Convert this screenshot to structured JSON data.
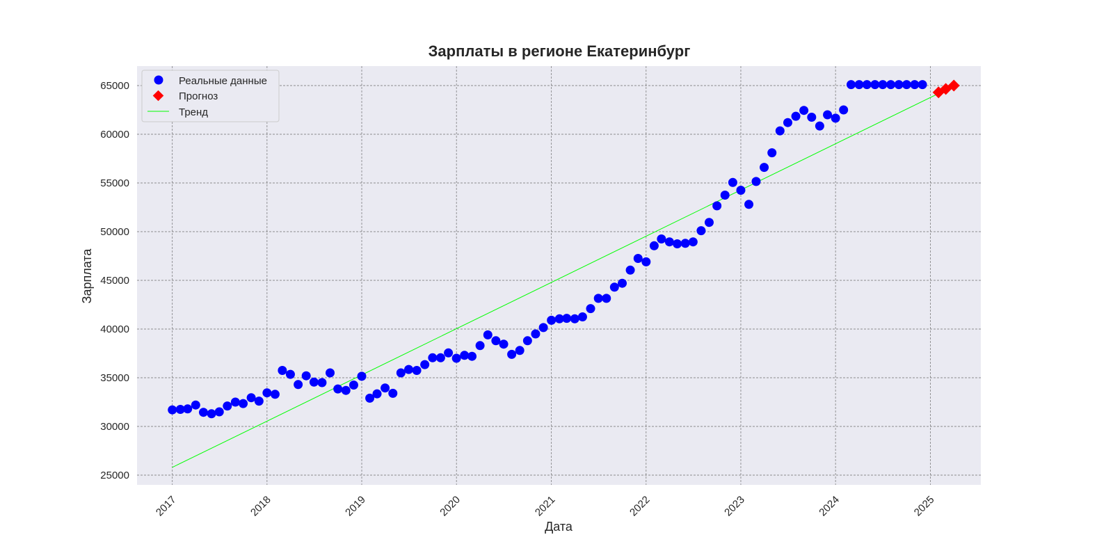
{
  "chart_data": {
    "type": "scatter",
    "title": "Зарплаты в регионе Екатеринбург",
    "xlabel": "Дата",
    "ylabel": "Зарплата",
    "x_axis_type": "date",
    "xlim": [
      "2016-08-18",
      "2025-07-14"
    ],
    "ylim": [
      24000,
      67000
    ],
    "x_ticks": [
      "2017",
      "2018",
      "2019",
      "2020",
      "2021",
      "2022",
      "2023",
      "2024",
      "2025"
    ],
    "y_ticks": [
      25000,
      30000,
      35000,
      40000,
      45000,
      50000,
      55000,
      60000,
      65000
    ],
    "grid": true,
    "legend_position": "top-left",
    "colors": {
      "background": "#eaeaf2",
      "grid": "#6e6e6e",
      "actual": "#0000ff",
      "forecast": "#ff0000",
      "trend": "#00ff00"
    },
    "series": [
      {
        "name": "Реальные данные",
        "kind": "scatter",
        "marker": "circle",
        "x": [
          "2017-01",
          "2017-02",
          "2017-03",
          "2017-04",
          "2017-05",
          "2017-06",
          "2017-07",
          "2017-08",
          "2017-09",
          "2017-10",
          "2017-11",
          "2017-12",
          "2018-01",
          "2018-02",
          "2018-03",
          "2018-04",
          "2018-05",
          "2018-06",
          "2018-07",
          "2018-08",
          "2018-09",
          "2018-10",
          "2018-11",
          "2018-12",
          "2019-01",
          "2019-02",
          "2019-03",
          "2019-04",
          "2019-05",
          "2019-06",
          "2019-07",
          "2019-08",
          "2019-09",
          "2019-10",
          "2019-11",
          "2019-12",
          "2020-01",
          "2020-02",
          "2020-03",
          "2020-04",
          "2020-05",
          "2020-06",
          "2020-07",
          "2020-08",
          "2020-09",
          "2020-10",
          "2020-11",
          "2020-12",
          "2021-01",
          "2021-02",
          "2021-03",
          "2021-04",
          "2021-05",
          "2021-06",
          "2021-07",
          "2021-08",
          "2021-09",
          "2021-10",
          "2021-11",
          "2021-12",
          "2022-01",
          "2022-02",
          "2022-03",
          "2022-04",
          "2022-05",
          "2022-06",
          "2022-07",
          "2022-08",
          "2022-09",
          "2022-10",
          "2022-11",
          "2022-12",
          "2023-01",
          "2023-02",
          "2023-03",
          "2023-04",
          "2023-05",
          "2023-06",
          "2023-07",
          "2023-08",
          "2023-09",
          "2023-10",
          "2023-11",
          "2023-12",
          "2024-01",
          "2024-02",
          "2024-03",
          "2024-04",
          "2024-05",
          "2024-06",
          "2024-07",
          "2024-08",
          "2024-09",
          "2024-10",
          "2024-11",
          "2024-12"
        ],
        "y": [
          31700,
          31750,
          31800,
          32200,
          31450,
          31300,
          31500,
          32100,
          32500,
          32350,
          32950,
          32600,
          33450,
          33300,
          35750,
          35350,
          34300,
          35200,
          34550,
          34500,
          35500,
          33850,
          33700,
          34250,
          35150,
          32900,
          33350,
          33950,
          33400,
          35500,
          35850,
          35750,
          36350,
          37050,
          37050,
          37550,
          37000,
          37300,
          37200,
          38300,
          39400,
          38800,
          38450,
          37400,
          37800,
          38800,
          39500,
          40150,
          40900,
          41050,
          41100,
          41050,
          41250,
          42100,
          43150,
          43150,
          44300,
          44700,
          46050,
          47250,
          46900,
          48550,
          49250,
          48950,
          48750,
          48800,
          48950,
          50100,
          50950,
          52650,
          53750,
          55050,
          54250,
          52800,
          55150,
          56600,
          58100,
          60350,
          61200,
          61850,
          62450,
          61750,
          60850,
          62000,
          61650,
          62500,
          65100,
          65100,
          65100,
          65100,
          65100,
          65100,
          65100,
          65100,
          65100,
          65100
        ]
      },
      {
        "name": "Прогноз",
        "kind": "scatter",
        "marker": "diamond",
        "x": [
          "2025-02",
          "2025-03",
          "2025-04"
        ],
        "y": [
          64300,
          64650,
          65000
        ]
      },
      {
        "name": "Тренд",
        "kind": "line",
        "x": [
          "2017-01",
          "2025-04"
        ],
        "y": [
          25800,
          64950
        ]
      }
    ]
  }
}
